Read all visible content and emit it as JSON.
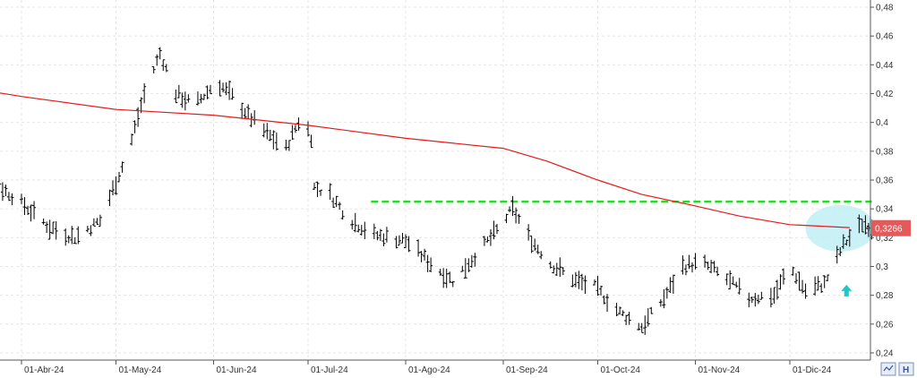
{
  "chart_data": {
    "type": "ohlc-bar",
    "grid": true,
    "y_axis_position": "right",
    "ylim": [
      0.235,
      0.485
    ],
    "yticks": [
      "0,48",
      "0,46",
      "0,44",
      "0,42",
      "0,4",
      "0,38",
      "0,36",
      "0,34",
      "0,32",
      "0,3",
      "0,28",
      "0,26",
      "0,24"
    ],
    "xticks": [
      "01-Abr-24",
      "01-May-24",
      "01-Jun-24",
      "01-Jul-24",
      "01-Ago-24",
      "01-Sep-24",
      "01-Oct-24",
      "01-Nov-24",
      "01-Dic-24"
    ],
    "last_price_label": "0,3266",
    "colors": {
      "bars": "#000000",
      "moving_average": "#e41a1a",
      "resistance": "#22dd22",
      "highlight_circle": "#bfeff5",
      "arrow": "#1ec8c8",
      "price_badge": "#e45a5a",
      "grid": "#e6e6e6"
    },
    "moving_average": {
      "x": [
        "2024-03-08",
        "2024-03-18",
        "2024-04-01",
        "2024-05-01",
        "2024-06-01",
        "2024-07-01",
        "2024-08-01",
        "2024-09-01",
        "2024-09-15",
        "2024-10-01",
        "2024-10-15",
        "2024-11-01",
        "2024-11-15",
        "2024-12-01",
        "2024-12-20"
      ],
      "y": [
        0.427,
        0.423,
        0.418,
        0.409,
        0.405,
        0.398,
        0.389,
        0.382,
        0.373,
        0.36,
        0.35,
        0.342,
        0.335,
        0.329,
        0.327
      ]
    },
    "resistance_level": {
      "y": 0.345,
      "x_start": "2024-07-21",
      "x_end": "2024-12-27"
    },
    "highlight": {
      "x_start": "2024-12-06",
      "x_end": "2024-12-28",
      "y_center": 0.3265
    },
    "arrow": {
      "x": "2024-12-19",
      "y": 0.283,
      "direction": "up"
    },
    "price_path": [
      {
        "x": "2024-03-10",
        "y": 0.33
      },
      {
        "x": "2024-03-20",
        "y": 0.362
      },
      {
        "x": "2024-03-30",
        "y": 0.348
      },
      {
        "x": "2024-04-10",
        "y": 0.327
      },
      {
        "x": "2024-04-18",
        "y": 0.32
      },
      {
        "x": "2024-04-26",
        "y": 0.332
      },
      {
        "x": "2024-05-05",
        "y": 0.38
      },
      {
        "x": "2024-05-10",
        "y": 0.42
      },
      {
        "x": "2024-05-15",
        "y": 0.448
      },
      {
        "x": "2024-05-20",
        "y": 0.42
      },
      {
        "x": "2024-05-26",
        "y": 0.412
      },
      {
        "x": "2024-06-02",
        "y": 0.428
      },
      {
        "x": "2024-06-07",
        "y": 0.418
      },
      {
        "x": "2024-06-12",
        "y": 0.405
      },
      {
        "x": "2024-06-18",
        "y": 0.392
      },
      {
        "x": "2024-06-24",
        "y": 0.382
      },
      {
        "x": "2024-06-29",
        "y": 0.405
      },
      {
        "x": "2024-07-02",
        "y": 0.39
      },
      {
        "x": "2024-07-03",
        "y": 0.355
      },
      {
        "x": "2024-07-08",
        "y": 0.35
      },
      {
        "x": "2024-07-14",
        "y": 0.333
      },
      {
        "x": "2024-07-22",
        "y": 0.322
      },
      {
        "x": "2024-08-01",
        "y": 0.318
      },
      {
        "x": "2024-08-10",
        "y": 0.3
      },
      {
        "x": "2024-08-16",
        "y": 0.29
      },
      {
        "x": "2024-08-22",
        "y": 0.305
      },
      {
        "x": "2024-08-30",
        "y": 0.325
      },
      {
        "x": "2024-09-04",
        "y": 0.34
      },
      {
        "x": "2024-09-10",
        "y": 0.318
      },
      {
        "x": "2024-09-16",
        "y": 0.302
      },
      {
        "x": "2024-09-24",
        "y": 0.29
      },
      {
        "x": "2024-09-30",
        "y": 0.286
      },
      {
        "x": "2024-10-08",
        "y": 0.268
      },
      {
        "x": "2024-10-15",
        "y": 0.258
      },
      {
        "x": "2024-10-22",
        "y": 0.278
      },
      {
        "x": "2024-10-28",
        "y": 0.3
      },
      {
        "x": "2024-11-03",
        "y": 0.303
      },
      {
        "x": "2024-11-10",
        "y": 0.293
      },
      {
        "x": "2024-11-18",
        "y": 0.278
      },
      {
        "x": "2024-11-26",
        "y": 0.28
      },
      {
        "x": "2024-12-01",
        "y": 0.3
      },
      {
        "x": "2024-12-06",
        "y": 0.283
      },
      {
        "x": "2024-12-12",
        "y": 0.288
      },
      {
        "x": "2024-12-18",
        "y": 0.315
      },
      {
        "x": "2024-12-24",
        "y": 0.33
      },
      {
        "x": "2024-12-28",
        "y": 0.3266
      }
    ]
  },
  "toolbar": {
    "icon_chart": "chart-scale-icon",
    "icon_h": "H"
  }
}
